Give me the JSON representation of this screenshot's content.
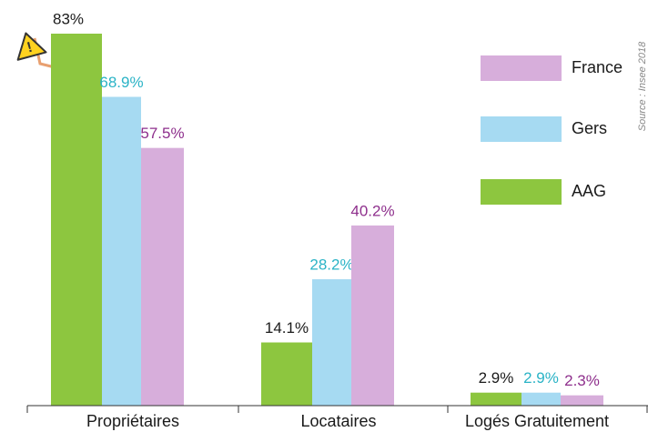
{
  "chart_data": {
    "type": "bar",
    "categories": [
      "Propriétaires",
      "Locataires",
      "Logés Gratuitement"
    ],
    "series": [
      {
        "name": "AAG",
        "color": "#8dc63f",
        "label_color": "#1a1a1a",
        "values": [
          83,
          14.1,
          2.9
        ],
        "value_labels": [
          "83%",
          "14.1%",
          "2.9%"
        ]
      },
      {
        "name": "Gers",
        "color": "#a6daf2",
        "label_color": "#2ab3c6",
        "values": [
          68.9,
          28.2,
          2.9
        ],
        "value_labels": [
          "68.9%",
          "28.2%",
          "2.9%"
        ]
      },
      {
        "name": "France",
        "color": "#d7aedb",
        "label_color": "#8e2f8c",
        "values": [
          57.5,
          40.2,
          2.3
        ],
        "value_labels": [
          "57.5%",
          "40.2%",
          "2.3%"
        ]
      }
    ],
    "source": "Source : Insee 2018"
  }
}
